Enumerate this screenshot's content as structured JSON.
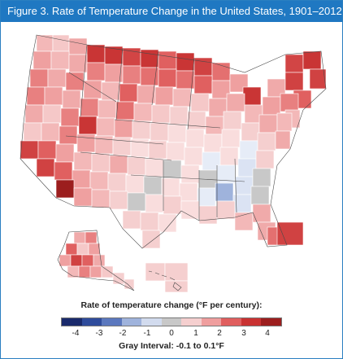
{
  "title": "Figure 3. Rate of Temperature Change in the United States, 1901–2012",
  "legend": {
    "title": "Rate of temperature change (°F per century):",
    "ticks": [
      "-4",
      "-3",
      "-2",
      "-1",
      "0",
      "1",
      "2",
      "3",
      "4"
    ],
    "colors": [
      "#1a2a6c",
      "#2f4c9c",
      "#5b78be",
      "#9fb3dc",
      "#d2dbee",
      "#c8c8c8",
      "#f5cfcf",
      "#ef9e9e",
      "#e05e5e",
      "#c93232",
      "#9c1e1e"
    ],
    "gray_note": "Gray Interval: -0.1 to 0.1°F"
  },
  "colors": {
    "title_bar": "#1f78c2",
    "state_border": "#4a4a4a"
  }
}
